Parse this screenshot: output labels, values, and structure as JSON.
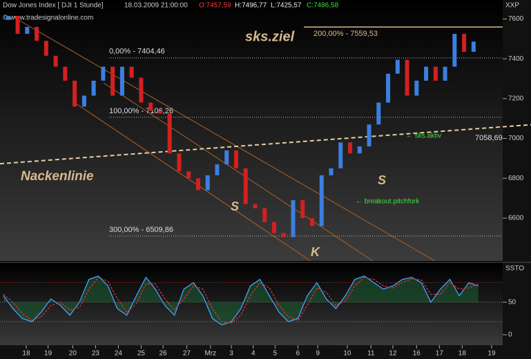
{
  "chart_data": [
    {
      "type": "candle-close",
      "header": {
        "instrument": "Dow Jones Index [ DJI  1 Stunde]",
        "time": "18.03.2009 21:00:00",
        "open": "O:7457,59",
        "high": "H:7496,77",
        "low": "L:7425,57",
        "close": "C:7486,58"
      },
      "copyright": "© www.tradesignalonline.com",
      "y_axis_label": "XXP",
      "values": [
        7595,
        7615,
        7525,
        7560,
        7490,
        7415,
        7360,
        7290,
        7160,
        7215,
        7290,
        7360,
        7215,
        7360,
        7305,
        7180,
        7140,
        7125,
        6925,
        6835,
        6800,
        6740,
        6815,
        6870,
        6940,
        6850,
        6670,
        6650,
        6580,
        6525,
        6505,
        6690,
        6600,
        6560,
        6815,
        6850,
        6980,
        6925,
        6960,
        7070,
        7180,
        7325,
        7395,
        7215,
        7290,
        7360,
        7290,
        7360,
        7525,
        7435,
        7486
      ],
      "up_color": "#3b7fe0",
      "down_color": "#d42020",
      "xlim": [
        -0.36,
        53
      ],
      "xticks": [
        {
          "value": 2.4,
          "label": "18"
        },
        {
          "value": 4.7,
          "label": "19"
        },
        {
          "value": 7.3,
          "label": "20"
        },
        {
          "value": 9.7,
          "label": "23"
        },
        {
          "value": 12.1,
          "label": "24"
        },
        {
          "value": 14.5,
          "label": "25"
        },
        {
          "value": 16.8,
          "label": "26"
        },
        {
          "value": 19.3,
          "label": "27"
        },
        {
          "value": 21.8,
          "label": "Mrz"
        },
        {
          "value": 24.0,
          "label": "3"
        },
        {
          "value": 26.3,
          "label": "4"
        },
        {
          "value": 28.6,
          "label": "5"
        },
        {
          "value": 31.0,
          "label": "6"
        },
        {
          "value": 33.1,
          "label": "9"
        },
        {
          "value": 36.2,
          "label": "10"
        },
        {
          "value": 38.7,
          "label": "11"
        },
        {
          "value": 41.0,
          "label": "12"
        },
        {
          "value": 43.5,
          "label": "16"
        },
        {
          "value": 45.9,
          "label": "17"
        },
        {
          "value": 48.3,
          "label": "18"
        },
        {
          "value": 51.4,
          "label": "19"
        }
      ],
      "ylim": [
        6385,
        7695
      ],
      "yticks": [
        6600,
        6800,
        7000,
        7200,
        7400,
        7600
      ],
      "levels": [
        {
          "value": 7559.53,
          "label": "200,00% - 7559,53"
        },
        {
          "value": 7404.46,
          "label": "0,00% - 7404,46"
        },
        {
          "value": 7106.26,
          "label": "100,00% - 7106,26"
        },
        {
          "value": 6509.86,
          "label": "300,00% - 6509,86"
        }
      ],
      "neckline": [
        6873,
        7069
      ],
      "neckline_label": "Nackenlinie",
      "neckline_value_label": "7058,69",
      "target_label": "sks.ziel",
      "pattern_labels": [
        "S",
        "K",
        "S"
      ],
      "notes": [
        "← sks.aktiv",
        "← breakout.pitchfork"
      ]
    },
    {
      "type": "stochastic",
      "y_axis_label": "SSTO",
      "series": [
        {
          "name": "SSTO",
          "color": "#4aa0ff",
          "values": [
            60,
            40,
            25,
            20,
            35,
            55,
            45,
            30,
            50,
            85,
            90,
            75,
            40,
            30,
            60,
            88,
            70,
            45,
            30,
            70,
            80,
            60,
            25,
            15,
            20,
            40,
            75,
            85,
            60,
            35,
            20,
            25,
            60,
            80,
            55,
            40,
            60,
            85,
            90,
            80,
            70,
            75,
            85,
            88,
            80,
            50,
            70,
            85,
            60,
            80,
            75
          ]
        },
        {
          "name": "Signal",
          "color": "#e03040",
          "values": [
            62,
            50,
            32,
            22,
            28,
            45,
            50,
            38,
            42,
            70,
            88,
            82,
            55,
            35,
            48,
            78,
            78,
            55,
            38,
            55,
            75,
            70,
            40,
            20,
            18,
            30,
            60,
            80,
            72,
            45,
            28,
            22,
            45,
            72,
            65,
            45,
            52,
            75,
            88,
            85,
            75,
            72,
            80,
            86,
            84,
            62,
            62,
            80,
            70,
            72,
            78
          ]
        }
      ],
      "ylim": [
        -16,
        109
      ],
      "yticks": [
        0,
        50
      ],
      "bands": [
        80,
        50,
        20
      ]
    }
  ]
}
